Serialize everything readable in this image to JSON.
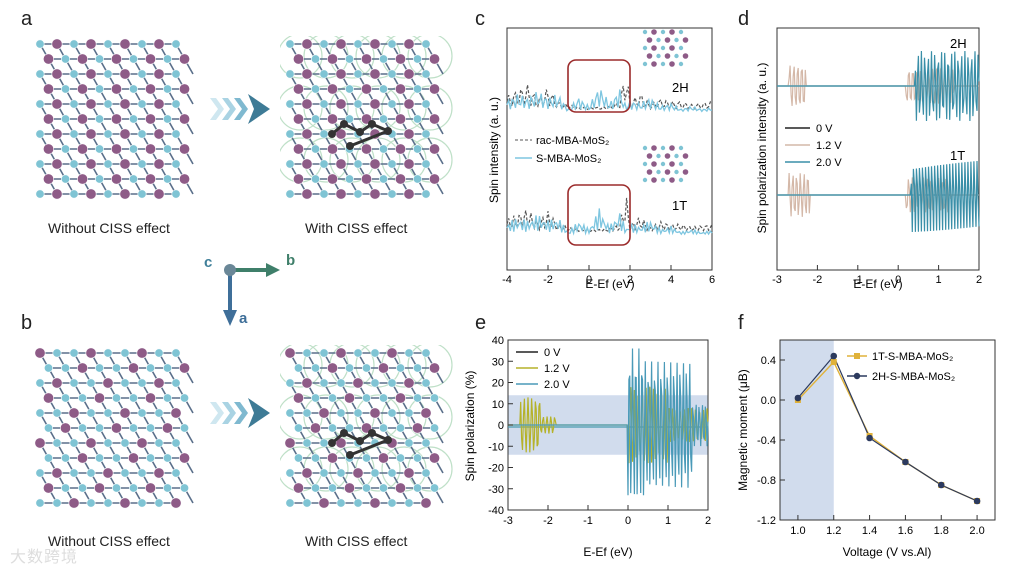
{
  "panels": {
    "a": {
      "label": "a",
      "caption_left": "Without CISS effect",
      "caption_right": "With CISS effect"
    },
    "b": {
      "label": "b",
      "caption_left": "Without CISS effect",
      "caption_right": "With CISS effect"
    },
    "c": {
      "label": "c"
    },
    "d": {
      "label": "d"
    },
    "e": {
      "label": "e"
    },
    "f": {
      "label": "f"
    }
  },
  "axes_triad": {
    "c": "c",
    "b": "b",
    "a": "a"
  },
  "watermark": "大数跨境",
  "colors": {
    "mo": "#8e5b87",
    "s": "#7fc4d4",
    "bond": "#5a6f8a",
    "accent": "#3f7f99",
    "box": "#9b2b2b",
    "shade": "#c9d6ea"
  },
  "chart_data": [
    {
      "id": "c",
      "type": "line",
      "xlabel": "E-Ef (eV)",
      "ylabel": "Spin intensity (a. u.)",
      "xlim": [
        -4,
        6
      ],
      "xticks": [
        "-4",
        "-2",
        "0",
        "2",
        "4",
        "6"
      ],
      "legend": [
        {
          "name": "rac-MBA-MoS₂",
          "style": "dashed"
        },
        {
          "name": "S-MBA-MoS₂",
          "style": "solid"
        }
      ],
      "annotations": [
        "2H",
        "1T"
      ],
      "series": [
        {
          "name": "rac-MBA-MoS₂ (2H)",
          "x": [
            -4,
            -3.5,
            -3,
            -2.5,
            -2,
            -1.5,
            -1,
            -0.5,
            0,
            0.5,
            1,
            1.5,
            1.8,
            2,
            2.5,
            3,
            3.5,
            4,
            4.5,
            5,
            5.5,
            6
          ],
          "values": [
            0.5,
            0.7,
            0.9,
            0.4,
            0.8,
            0.3,
            0.2,
            0.1,
            0.1,
            0.1,
            0.15,
            0.3,
            1.6,
            0.3,
            0.6,
            0.2,
            0.4,
            0.3,
            0.3,
            0.2,
            0.25,
            0.3
          ]
        },
        {
          "name": "S-MBA-MoS₂ (2H)",
          "x": [
            -4,
            -3.5,
            -3,
            -2.5,
            -2,
            -1.5,
            -1,
            -0.5,
            0,
            0.5,
            1,
            1.5,
            1.8,
            2,
            2.5,
            3,
            3.5,
            4,
            4.5,
            5,
            5.5,
            6
          ],
          "values": [
            0.4,
            0.6,
            0.5,
            0.7,
            0.5,
            0.6,
            0.1,
            0.5,
            0.2,
            0.9,
            0.3,
            0.8,
            0.2,
            0.4,
            0.3,
            0.5,
            0.2,
            0.3,
            0.1,
            0.2,
            0.1,
            0.15
          ]
        }
      ]
    },
    {
      "id": "d",
      "type": "line",
      "xlabel": "E-Ef (eV)",
      "ylabel": "Spin polarization  intensity (a. u.)",
      "xlim": [
        -3,
        2
      ],
      "xticks": [
        "-3",
        "-2",
        "-1",
        "0",
        "1",
        "2"
      ],
      "legend": [
        "0 V",
        "1.2 V",
        "2.0 V"
      ],
      "annotations": [
        "2H",
        "1T"
      ]
    },
    {
      "id": "e",
      "type": "line",
      "xlabel": "E-Ef (eV)",
      "ylabel": "Spin polarization (%)",
      "xlim": [
        -3,
        2
      ],
      "ylim": [
        -40,
        40
      ],
      "xticks": [
        "-3",
        "-2",
        "-1",
        "0",
        "1",
        "2"
      ],
      "yticks": [
        "40",
        "30",
        "20",
        "10",
        "0",
        "-10",
        "-20",
        "-30",
        "-40"
      ],
      "legend": [
        "0 V",
        "1.2 V",
        "2.0 V"
      ],
      "shaded_band": [
        -14,
        14
      ]
    },
    {
      "id": "f",
      "type": "line",
      "xlabel": "Voltage (V vs.Al)",
      "ylabel": "Magnetic moment (μB)",
      "xlim": [
        0.9,
        2.1
      ],
      "ylim": [
        -1.2,
        0.6
      ],
      "xticks": [
        "1.0",
        "1.2",
        "1.4",
        "1.6",
        "1.8",
        "2.0"
      ],
      "yticks": [
        "0.4",
        "0.0",
        "-0.4",
        "-0.8",
        "-1.2"
      ],
      "shaded_x": [
        0.9,
        1.2
      ],
      "categories": [
        1.0,
        1.2,
        1.4,
        1.6,
        1.8,
        2.0
      ],
      "series": [
        {
          "name": "1T-S-MBA-MoS₂",
          "values": [
            0.0,
            0.38,
            -0.36,
            -0.62,
            -0.85,
            -1.01
          ]
        },
        {
          "name": "2H-S-MBA-MoS₂",
          "values": [
            0.02,
            0.44,
            -0.38,
            -0.62,
            -0.85,
            -1.01
          ]
        }
      ]
    }
  ]
}
